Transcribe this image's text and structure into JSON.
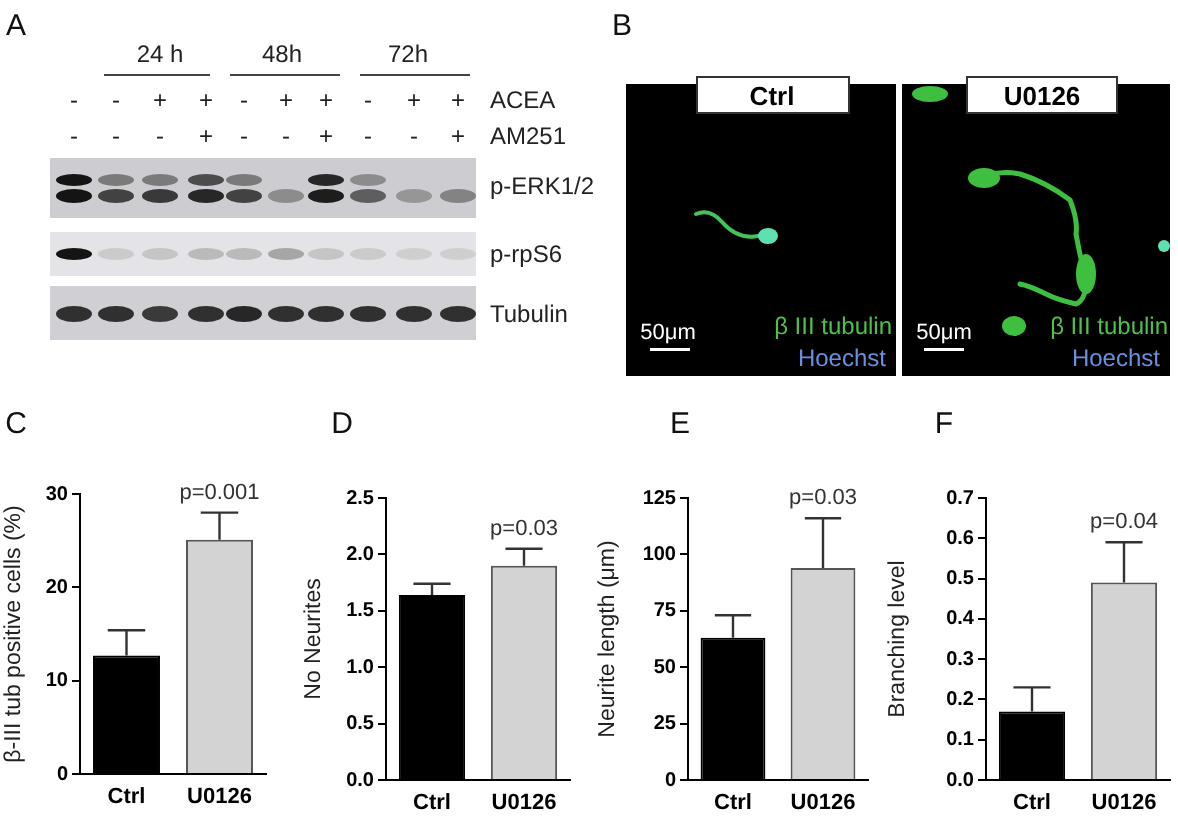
{
  "chart_data": [
    {
      "type": "other",
      "title": "A",
      "annotations": [
        "24 h",
        "48h",
        "72h",
        "-",
        "-",
        "+",
        "+",
        "-",
        "+",
        "+",
        "-",
        "+",
        "+",
        "ACEA",
        "-",
        "-",
        "-",
        "+",
        "-",
        "-",
        "+",
        "-",
        "-",
        "+",
        "AM251",
        "p-ERK1/2",
        "p-rpS6",
        "Tubulin"
      ]
    },
    {
      "type": "other",
      "title": "B",
      "annotations": [
        "Ctrl",
        "U0126",
        "50μm",
        "β III tubulin",
        "Hoechst",
        "50μm",
        "β III tubulin",
        "Hoechst"
      ]
    },
    {
      "type": "bar",
      "title": "C",
      "ylabel": "β-III tub positive cells (%)",
      "categories": [
        "Ctrl",
        "U0126"
      ],
      "values": [
        12.7,
        25.1
      ],
      "colors": [
        "#000000",
        "#d3d3d3"
      ],
      "errors": [
        [
          12.7,
          15.4
        ],
        [
          25.1,
          28.0
        ]
      ],
      "ylim": [
        0,
        30
      ],
      "yticks": [
        0,
        10,
        20,
        30
      ],
      "annotations": [
        "p=0.001"
      ]
    },
    {
      "type": "bar",
      "title": "D",
      "ylabel": "No Neurites",
      "categories": [
        "Ctrl",
        "U0126"
      ],
      "values": [
        1.64,
        1.9
      ],
      "colors": [
        "#000000",
        "#d3d3d3"
      ],
      "errors": [
        [
          1.64,
          1.74
        ],
        [
          1.9,
          2.05
        ]
      ],
      "ylim": [
        0,
        2.5
      ],
      "yticks": [
        {
          "value": 0,
          "label": "0.0"
        },
        0.5,
        {
          "value": 1,
          "label": "1.0"
        },
        1.5,
        {
          "value": 2,
          "label": "2.0"
        },
        2.5
      ],
      "annotations": [
        "p=0.03"
      ]
    },
    {
      "type": "bar",
      "title": "E",
      "ylabel": "Neurite length (μm)",
      "categories": [
        "Ctrl",
        "U0126"
      ],
      "values": [
        63,
        94
      ],
      "colors": [
        "#000000",
        "#d3d3d3"
      ],
      "errors": [
        [
          63,
          73
        ],
        [
          94,
          116
        ]
      ],
      "ylim": [
        0,
        125
      ],
      "yticks": [
        0,
        25,
        50,
        75,
        100,
        125
      ],
      "annotations": [
        "p=0.03"
      ]
    },
    {
      "type": "bar",
      "title": "F",
      "ylabel": "Branching level",
      "categories": [
        "Ctrl",
        "U0126"
      ],
      "values": [
        0.17,
        0.49
      ],
      "colors": [
        "#000000",
        "#d3d3d3"
      ],
      "errors": [
        [
          0.17,
          0.23
        ],
        [
          0.49,
          0.59
        ]
      ],
      "ylim": [
        0,
        0.7
      ],
      "yticks": [
        {
          "value": 0,
          "label": "0.0"
        },
        0.1,
        0.2,
        0.3,
        0.4,
        0.5,
        0.6,
        0.7
      ],
      "annotations": [
        "p=0.04"
      ]
    }
  ]
}
